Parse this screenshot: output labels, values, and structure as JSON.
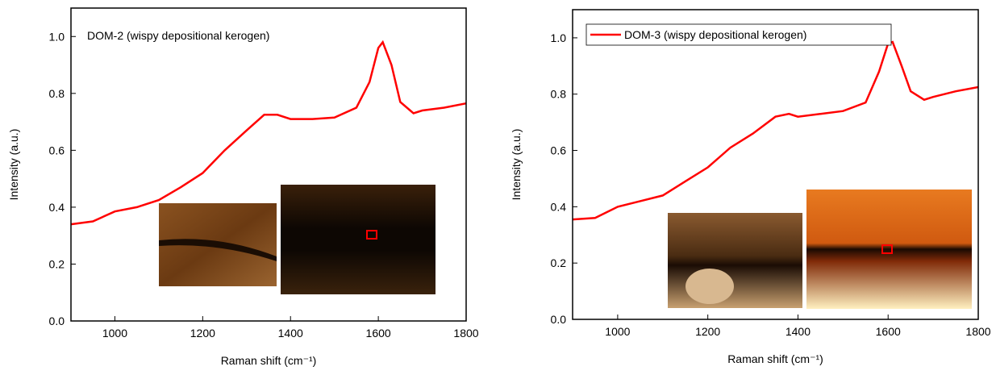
{
  "chart_data": [
    {
      "type": "line",
      "xlabel": "Raman shift (cm⁻¹)",
      "ylabel": "Intensity (a.u.)",
      "xlim": [
        900,
        1800
      ],
      "ylim": [
        0,
        1.1
      ],
      "xticks": [
        1000,
        1200,
        1400,
        1600,
        1800
      ],
      "yticks": [
        {
          "value": 0,
          "label": "0.0"
        },
        0.2,
        0.4,
        0.6,
        0.8,
        {
          "value": 1,
          "label": "1.0"
        }
      ],
      "x": [
        900,
        950,
        1000,
        1050,
        1100,
        1150,
        1200,
        1250,
        1300,
        1340,
        1370,
        1400,
        1450,
        1500,
        1550,
        1580,
        1600,
        1610,
        1630,
        1650,
        1680,
        1700,
        1750,
        1800
      ],
      "series": [
        {
          "name": "DOM-2 (wispy depositional kerogen)",
          "color": "#ff0000",
          "values": [
            0.34,
            0.35,
            0.385,
            0.4,
            0.425,
            0.47,
            0.52,
            0.6,
            0.67,
            0.725,
            0.725,
            0.71,
            0.71,
            0.715,
            0.75,
            0.84,
            0.96,
            0.98,
            0.9,
            0.77,
            0.73,
            0.74,
            0.75,
            0.765
          ]
        }
      ],
      "legend_symbol": false
    },
    {
      "type": "line",
      "xlabel": "Raman shift (cm⁻¹)",
      "ylabel": "Intensity (a.u.)",
      "xlim": [
        900,
        1800
      ],
      "ylim": [
        0,
        1.1
      ],
      "xticks": [
        1000,
        1200,
        1400,
        1600,
        1800
      ],
      "yticks": [
        {
          "value": 0,
          "label": "0.0"
        },
        0.2,
        0.4,
        0.6,
        0.8,
        {
          "value": 1,
          "label": "1.0"
        }
      ],
      "x": [
        900,
        950,
        1000,
        1050,
        1100,
        1150,
        1200,
        1250,
        1300,
        1350,
        1380,
        1400,
        1450,
        1500,
        1550,
        1580,
        1600,
        1610,
        1630,
        1650,
        1680,
        1700,
        1750,
        1800
      ],
      "series": [
        {
          "name": "DOM-3 (wispy depositional kerogen)",
          "color": "#ff0000",
          "values": [
            0.355,
            0.36,
            0.4,
            0.42,
            0.44,
            0.49,
            0.54,
            0.61,
            0.66,
            0.72,
            0.73,
            0.72,
            0.73,
            0.74,
            0.77,
            0.88,
            0.98,
            0.985,
            0.9,
            0.81,
            0.78,
            0.79,
            0.81,
            0.825
          ]
        }
      ],
      "legend_symbol": true
    }
  ]
}
